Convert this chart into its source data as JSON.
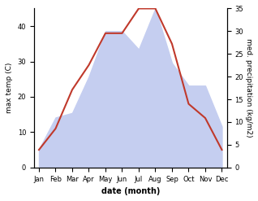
{
  "months": [
    "Jan",
    "Feb",
    "Mar",
    "Apr",
    "May",
    "Jun",
    "Jul",
    "Aug",
    "Sep",
    "Oct",
    "Nov",
    "Dec"
  ],
  "temp": [
    5,
    11,
    22,
    29,
    38,
    38,
    45,
    45,
    35,
    18,
    14,
    5
  ],
  "precip": [
    4,
    11,
    12,
    20,
    30,
    30,
    26,
    35,
    23,
    18,
    18,
    9
  ],
  "temp_color": "#c0392b",
  "precip_fill_color": "#c5cef0",
  "temp_ylim": [
    0,
    45
  ],
  "precip_ylim": [
    0,
    35
  ],
  "temp_yticks": [
    0,
    10,
    20,
    30,
    40
  ],
  "precip_yticks": [
    0,
    5,
    10,
    15,
    20,
    25,
    30,
    35
  ],
  "xlabel": "date (month)",
  "ylabel_left": "max temp (C)",
  "ylabel_right": "med. precipitation (kg/m2)"
}
